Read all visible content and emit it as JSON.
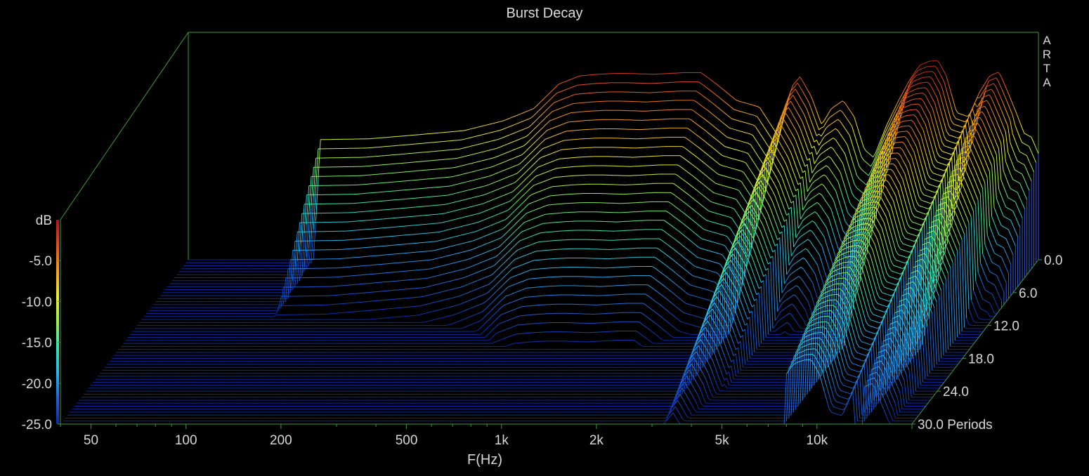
{
  "title": "Burst Decay",
  "watermark": [
    "A",
    "R",
    "T",
    "A"
  ],
  "chart_data": {
    "type": "area",
    "title": "Burst Decay",
    "xlabel": "F(Hz)",
    "x_scale": "log",
    "xlim": [
      40,
      20000
    ],
    "x_ticks": [
      {
        "value": 50,
        "label": "50"
      },
      {
        "value": 100,
        "label": "100"
      },
      {
        "value": 200,
        "label": "200"
      },
      {
        "value": 500,
        "label": "500"
      },
      {
        "value": 1000,
        "label": "1k"
      },
      {
        "value": 2000,
        "label": "2k"
      },
      {
        "value": 5000,
        "label": "5k"
      },
      {
        "value": 10000,
        "label": "10k"
      }
    ],
    "zlabel": "dB",
    "zlim": [
      -25,
      0
    ],
    "z_ticks": [
      "-5.0",
      "-10.0",
      "-15.0",
      "-20.0",
      "-25.0"
    ],
    "depth_axis": "Periods",
    "depth_range": [
      0,
      30
    ],
    "depth_ticks": [
      "0.0",
      "6.0",
      "12.0",
      "18.0",
      "24.0",
      "30.0 Periods"
    ],
    "colormap": [
      "#0a2aa8",
      "#1e64d2",
      "#28b4f0",
      "#32e6b4",
      "#96f050",
      "#f0f028",
      "#f5a01e",
      "#e6501e",
      "#b41414"
    ],
    "axis_color": "#3f9a3f",
    "series": [
      {
        "name": "0.0 Periods",
        "freq": [
          100,
          105,
          150,
          200,
          300,
          400,
          500,
          600,
          700,
          800,
          900,
          1000,
          1200,
          1500,
          1700,
          1900,
          2200,
          2600,
          3000,
          3300,
          3500,
          3800,
          4100,
          4400,
          4800,
          5200,
          5600,
          6000,
          6600,
          7200,
          7800,
          8400,
          9000,
          9600,
          10200,
          11000,
          12000,
          13000,
          14000,
          15000,
          16000,
          17000,
          18000,
          19000,
          20000
        ],
        "db": [
          -25,
          -10.3,
          -10.2,
          -9.8,
          -9.2,
          -8.0,
          -6.5,
          -3.5,
          -2.5,
          -2.3,
          -2.2,
          -2.2,
          -2.3,
          -2.1,
          -2.1,
          -3.5,
          -5.5,
          -6.3,
          -10.0,
          -3.8,
          -2.6,
          -5.0,
          -8.5,
          -6.5,
          -5.5,
          -7.5,
          -11.5,
          -12.5,
          -8.5,
          -5.5,
          -3.0,
          -1.2,
          -0.7,
          -0.6,
          -2.5,
          -7.0,
          -7.5,
          -4.5,
          -2.5,
          -2.0,
          -4.5,
          -7.0,
          -9.5,
          -10.0,
          -12.0
        ]
      }
    ]
  }
}
